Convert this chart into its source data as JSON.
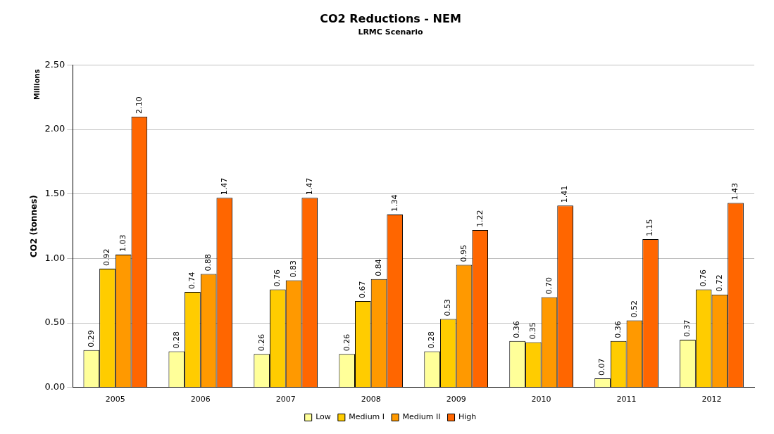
{
  "chart_data": {
    "type": "bar",
    "title": "CO2 Reductions - NEM",
    "subtitle": "LRMC Scenario",
    "ylabel": "CO2 (tonnes)",
    "annotations": [
      "Millions"
    ],
    "categories": [
      "2005",
      "2006",
      "2007",
      "2008",
      "2009",
      "2010",
      "2011",
      "2012"
    ],
    "series": [
      {
        "name": "Low",
        "color": "#ffff99",
        "values": [
          0.29,
          0.28,
          0.26,
          0.26,
          0.28,
          0.36,
          0.07,
          0.37
        ],
        "value_labels": [
          "0.29",
          "0.28",
          "0.26",
          "0.26",
          "0.28",
          "0.36",
          "0.07",
          "0.37"
        ]
      },
      {
        "name": "Medium I",
        "color": "#ffcc00",
        "values": [
          0.92,
          0.74,
          0.76,
          0.67,
          0.53,
          0.35,
          0.36,
          0.76
        ],
        "value_labels": [
          "0.92",
          "0.74",
          "0.76",
          "0.67",
          "0.53",
          "0.35",
          "0.36",
          "0.76"
        ]
      },
      {
        "name": "Medium II",
        "color": "#ff9900",
        "values": [
          1.03,
          0.88,
          0.83,
          0.84,
          0.95,
          0.7,
          0.52,
          0.72
        ],
        "value_labels": [
          "1.03",
          "0.88",
          "0.83",
          "0.84",
          "0.95",
          "0.70",
          "0.52",
          "0.72"
        ]
      },
      {
        "name": "High",
        "color": "#ff6600",
        "values": [
          2.1,
          1.47,
          1.47,
          1.34,
          1.22,
          1.41,
          1.15,
          1.43
        ],
        "value_labels": [
          "2.10",
          "1.47",
          "1.47",
          "1.34",
          "1.22",
          "1.41",
          "1.15",
          "1.43"
        ]
      }
    ],
    "ylim": [
      0,
      2.5
    ],
    "yticks": [
      {
        "value": 0,
        "label": "0.00"
      },
      {
        "value": 0.5,
        "label": "0.50"
      },
      {
        "value": 1,
        "label": "1.00"
      },
      {
        "value": 1.5,
        "label": "1.50"
      },
      {
        "value": 2,
        "label": "2.00"
      },
      {
        "value": 2.5,
        "label": "2.50"
      }
    ],
    "grid": "y",
    "legend": "bottom"
  }
}
